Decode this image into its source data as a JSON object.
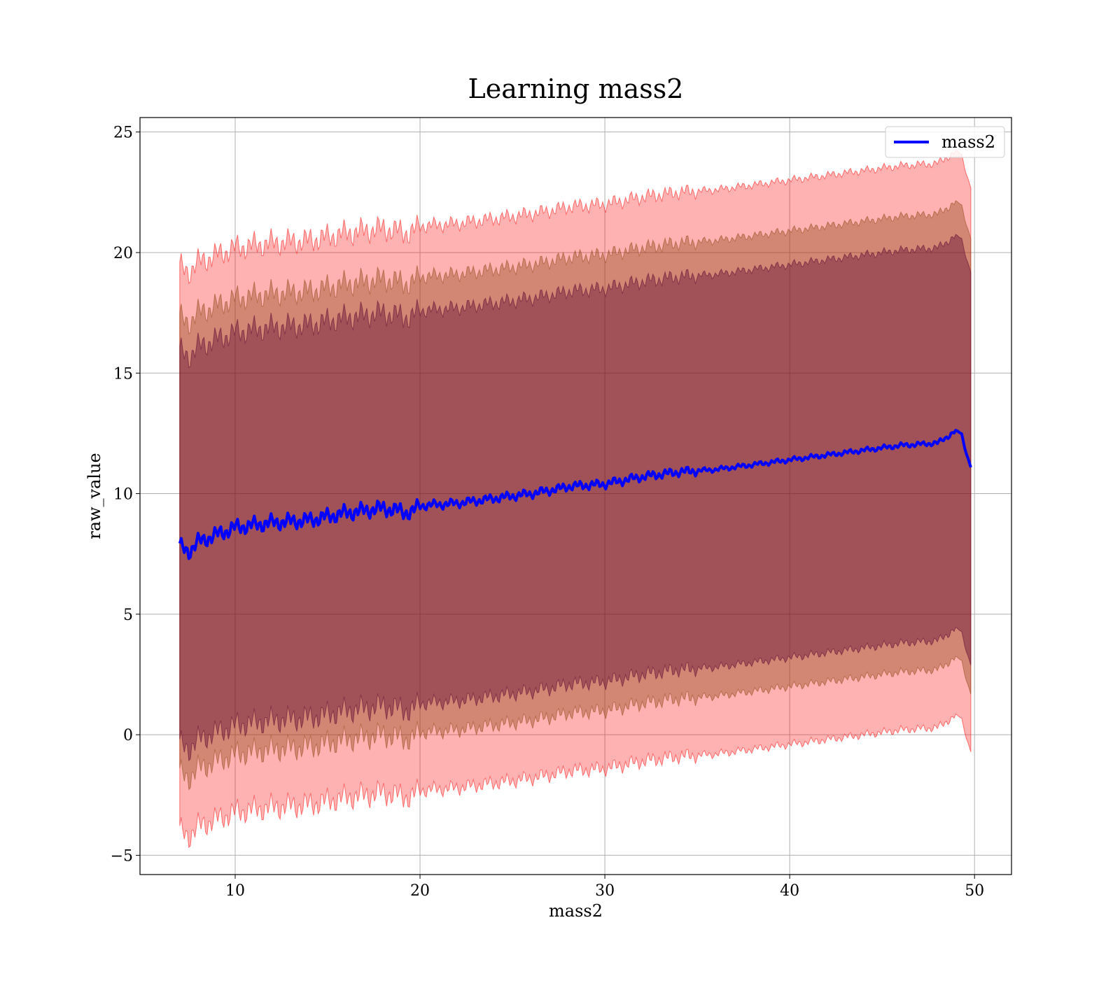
{
  "chart_data": {
    "type": "area",
    "title": "Learning mass2",
    "xlabel": "mass2",
    "ylabel": "raw_value",
    "xlim": [
      4.85,
      52.0
    ],
    "ylim": [
      -5.8,
      25.6
    ],
    "xticks": [
      10,
      20,
      30,
      40,
      50
    ],
    "yticks": [
      -5,
      0,
      5,
      10,
      15,
      20,
      25
    ],
    "xtick_labels": [
      "10",
      "20",
      "30",
      "40",
      "50"
    ],
    "ytick_labels": [
      "−5",
      "0",
      "5",
      "10",
      "15",
      "20",
      "25"
    ],
    "grid": true,
    "legend": {
      "position": "top-right",
      "entries": [
        "mass2"
      ]
    },
    "colors": {
      "mean_line": "#0000ff",
      "band_3sigma": "#ff0000",
      "band_2sigma": "#8b4513",
      "band_1sigma": "#5a0030",
      "grid": "#b0b0b0"
    },
    "series": [
      {
        "name": "mass2",
        "x": [
          7.0,
          7.5,
          8.0,
          9.0,
          10.0,
          12.0,
          14.0,
          16.0,
          18.0,
          19.5,
          20.0,
          22.0,
          24.0,
          26.0,
          27.5,
          28.0,
          30.0,
          32.0,
          34.0,
          36.0,
          38.0,
          40.0,
          42.0,
          44.0,
          46.0,
          48.0,
          49.0,
          49.3,
          49.5,
          49.8
        ],
        "y": [
          7.8,
          7.6,
          8.0,
          8.3,
          8.6,
          8.8,
          8.9,
          9.2,
          9.4,
          9.2,
          9.5,
          9.6,
          9.8,
          10.0,
          10.2,
          10.3,
          10.4,
          10.7,
          10.9,
          11.0,
          11.2,
          11.4,
          11.6,
          11.8,
          12.0,
          12.1,
          12.6,
          12.5,
          11.8,
          11.1
        ]
      }
    ],
    "bands": [
      {
        "level": "3sigma",
        "lower_offset": -11.8,
        "upper_offset": 11.6
      },
      {
        "level": "2sigma",
        "lower_offset": -9.4,
        "upper_offset": 9.5
      },
      {
        "level": "1sigma",
        "lower_offset": -8.2,
        "upper_offset": 8.1
      }
    ]
  }
}
